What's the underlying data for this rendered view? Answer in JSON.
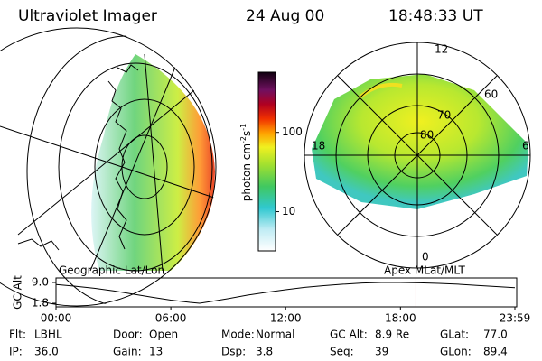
{
  "header": {
    "instrument": "Ultraviolet Imager",
    "date": "24 Aug 00",
    "time": "18:48:33 UT"
  },
  "left_panel": {
    "label": "Geographic Lat/Lon"
  },
  "right_panel": {
    "label": "Apex MLat/MLT",
    "mlt_labels": [
      "12",
      "18",
      "6",
      "0"
    ],
    "lat_labels": [
      "80",
      "70",
      "60"
    ]
  },
  "colorbar": {
    "label": "photon cm",
    "exp1": "-2",
    "unit2": "s",
    "exp2": "-1",
    "lim": [
      3.2,
      575
    ],
    "ticks": [
      10,
      100
    ],
    "log": true
  },
  "gc_alt": {
    "ylabel": "GC Alt",
    "ylim": [
      1.8,
      9.0
    ],
    "yticks": [
      {
        "value": 9.0,
        "label": "9.0"
      },
      {
        "value": 1.8,
        "label": "1.8"
      }
    ],
    "xlim": [
      0,
      23.98
    ],
    "xticks": [
      {
        "value": 0,
        "label": "00:00"
      },
      {
        "value": 6,
        "label": "06:00"
      },
      {
        "value": 12,
        "label": "12:00"
      },
      {
        "value": 18,
        "label": "18:00"
      },
      {
        "value": 23.98,
        "label": "23:59"
      }
    ],
    "x": [
      0,
      1,
      2,
      3,
      4,
      5,
      6,
      7,
      7.5,
      8,
      9,
      10,
      11,
      12,
      13,
      14,
      15,
      16,
      17,
      18,
      19,
      20,
      21,
      22,
      23,
      23.98
    ],
    "values": [
      8.3,
      7.7,
      7.0,
      6.1,
      5.0,
      3.9,
      2.9,
      2.1,
      1.8,
      2.3,
      3.4,
      4.6,
      5.6,
      6.5,
      7.3,
      7.9,
      8.4,
      8.8,
      9.0,
      9.0,
      8.9,
      8.7,
      8.4,
      8.0,
      7.6,
      7.2
    ],
    "marker": 18.81,
    "marker_color": "#d00000",
    "line_color": "#000000"
  },
  "footer": {
    "rows": [
      [
        {
          "label": "Flt:",
          "value": "LBHL"
        },
        {
          "label": "Door:",
          "value": "Open"
        },
        {
          "label": "Mode:",
          "value": "Normal"
        },
        {
          "label": "GC Alt:",
          "value": "8.9 Re"
        },
        {
          "label": "GLat:",
          "value": "77.0"
        }
      ],
      [
        {
          "label": "IP:",
          "value": "36.0"
        },
        {
          "label": "Gain:",
          "value": "13"
        },
        {
          "label": "Dsp:",
          "value": "3.8"
        },
        {
          "label": "Seq:",
          "value": "39"
        },
        {
          "label": "GLon:",
          "value": "89.4"
        }
      ]
    ]
  }
}
